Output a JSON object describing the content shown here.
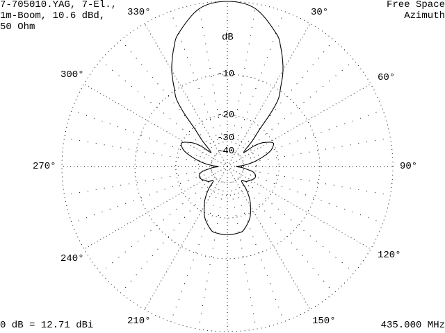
{
  "header": {
    "title_lines": [
      "7-705010.YAG, 7-El.,",
      "1m-Boom, 10.6 dBd,",
      "50 Ohm"
    ],
    "mode_lines": [
      "Free Space",
      "Azimuth"
    ],
    "reference": "0 dB = 12.71 dBi",
    "frequency": "435.000 MHz"
  },
  "chart_data": {
    "type": "polar-line",
    "scale": "ARRL log (0.89 per 2 dB)",
    "radial_unit_label": "dB",
    "radial_ticks": [
      0,
      -10,
      -20,
      -30,
      -40
    ],
    "radial_tick_labels": [
      "-10",
      "-20",
      "-30",
      "-40"
    ],
    "angle_ticks": [
      0,
      30,
      60,
      90,
      120,
      150,
      180,
      210,
      240,
      270,
      300,
      330
    ],
    "angle_tick_labels": [
      "30°",
      "60°",
      "90°",
      "120°",
      "150°",
      "210°",
      "240°",
      "270°",
      "300°",
      "330°"
    ],
    "grid": true,
    "series": [
      {
        "azimuth_deg": [
          0,
          10,
          20,
          24,
          28,
          31,
          34,
          37,
          39,
          41,
          44,
          49,
          52,
          55,
          60,
          63,
          66,
          70,
          74,
          80,
          86,
          90,
          94,
          97,
          102,
          108,
          114,
          120,
          128,
          136,
          140,
          144,
          148,
          156,
          165,
          170,
          180
        ],
        "gain_db": [
          0,
          -0.5,
          -2.6,
          -4,
          -5.8,
          -7.4,
          -9.5,
          -11.5,
          -15,
          -21,
          -26,
          -35,
          -28,
          -24,
          -21,
          -20,
          -20.5,
          -22,
          -25,
          -31,
          -40,
          -50,
          -42,
          -38,
          -31.5,
          -29.5,
          -29.6,
          -31,
          -33,
          -36,
          -30,
          -26,
          -23,
          -18.7,
          -16,
          -15.4,
          -15.2
        ],
        "symmetric": true
      }
    ],
    "colors": {
      "trace": "#000000",
      "grid": "#000000",
      "background": "#ffffff"
    }
  }
}
